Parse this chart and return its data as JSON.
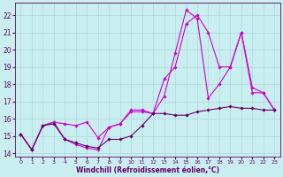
{
  "xlabel": "Windchill (Refroidissement éolien,°C)",
  "xlim": [
    -0.5,
    23.5
  ],
  "ylim": [
    13.8,
    22.7
  ],
  "yticks": [
    14,
    15,
    16,
    17,
    18,
    19,
    20,
    21,
    22
  ],
  "xticks": [
    0,
    1,
    2,
    3,
    4,
    5,
    6,
    7,
    8,
    9,
    10,
    11,
    12,
    13,
    14,
    15,
    16,
    17,
    18,
    19,
    20,
    21,
    22,
    23
  ],
  "bg_color": "#c8eef0",
  "grid_color": "#b0d8dc",
  "series": [
    {
      "color": "#cc00cc",
      "x": [
        0,
        1,
        2,
        3,
        4,
        5,
        6,
        7,
        8,
        9,
        10,
        11,
        12,
        13,
        14,
        15,
        16,
        17,
        18,
        19,
        20,
        21,
        22,
        23
      ],
      "y": [
        15.1,
        14.2,
        15.6,
        15.8,
        14.8,
        14.5,
        14.3,
        14.2,
        15.5,
        15.7,
        16.5,
        16.5,
        16.3,
        17.3,
        19.8,
        22.3,
        21.8,
        17.2,
        18.0,
        19.0,
        21.0,
        17.5,
        17.5,
        16.5
      ]
    },
    {
      "color": "#cc00cc",
      "x": [
        0,
        1,
        2,
        3,
        4,
        5,
        6,
        7,
        8,
        9,
        10,
        11,
        12,
        13,
        14,
        15,
        16,
        17,
        18,
        19,
        20,
        21,
        22,
        23
      ],
      "y": [
        15.1,
        14.2,
        15.6,
        15.8,
        15.7,
        15.6,
        15.8,
        14.9,
        15.5,
        15.7,
        16.4,
        16.4,
        16.3,
        18.3,
        19.0,
        21.5,
        22.0,
        21.0,
        19.0,
        19.0,
        21.0,
        17.8,
        17.5,
        16.5
      ]
    },
    {
      "color": "#660066",
      "x": [
        0,
        1,
        2,
        3,
        4,
        5,
        6,
        7,
        8,
        9,
        10,
        11,
        12,
        13,
        14,
        15,
        16,
        17,
        18,
        19,
        20,
        21,
        22,
        23
      ],
      "y": [
        15.1,
        14.2,
        15.6,
        15.7,
        14.8,
        14.6,
        14.4,
        14.3,
        14.8,
        14.8,
        15.0,
        15.6,
        16.3,
        16.3,
        16.2,
        16.2,
        16.4,
        16.5,
        16.6,
        16.7,
        16.6,
        16.6,
        16.5,
        16.5
      ]
    }
  ]
}
